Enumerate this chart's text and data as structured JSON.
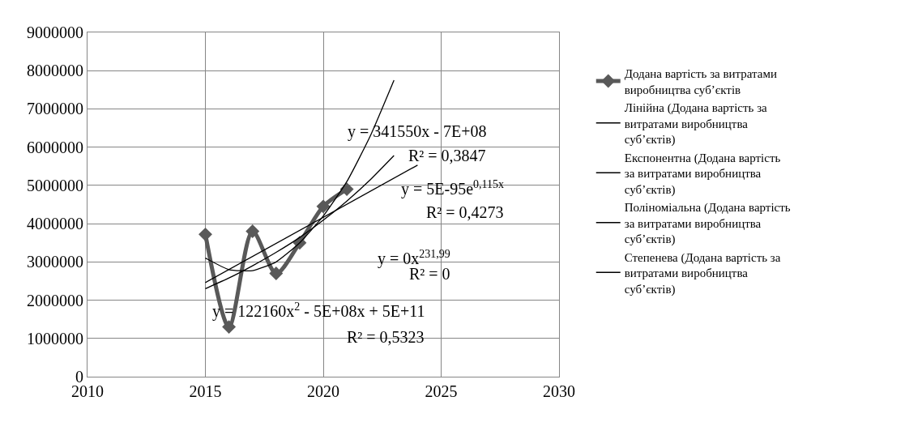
{
  "chart_data": {
    "type": "line",
    "x": [
      2015,
      2016,
      2017,
      2018,
      2019,
      2020,
      2021
    ],
    "series": [
      {
        "name": "Додана вартість за витратами виробництва суб’єктів",
        "color": "#595959",
        "values": [
          3720000,
          1300000,
          3800000,
          2700000,
          3500000,
          4450000,
          4900000
        ],
        "marker": "diamond"
      },
      {
        "name": "Лінійна (Додана вартість за витратами виробництва суб’єктів)",
        "color": "#000000",
        "x": [
          2015,
          2024
        ],
        "values": [
          2460000,
          5530000
        ],
        "marker": "none"
      },
      {
        "name": "Експонентна (Додана вартість за витратами виробництва суб’єктів)",
        "color": "#000000",
        "x": [
          2015,
          2016,
          2017,
          2018,
          2019,
          2020,
          2021,
          2022,
          2023
        ],
        "values": [
          2300000,
          2580000,
          2900000,
          3250000,
          3640000,
          4090000,
          4590000,
          5150000,
          5780000
        ],
        "marker": "none"
      },
      {
        "name": "Поліноміальна (Додана вартість за витратами виробництва суб’єктів)",
        "color": "#000000",
        "x": [
          2015,
          2016,
          2017,
          2018,
          2019,
          2020,
          2021,
          2022,
          2023
        ],
        "values": [
          3100000,
          2800000,
          2770000,
          3000000,
          3500000,
          4200000,
          5100000,
          6300000,
          7750000
        ],
        "marker": "none"
      },
      {
        "name": "Степенева (Додана вартість за витратами виробництва суб’єктів)",
        "color": "#000000",
        "values": [
          null,
          null,
          null,
          null,
          null,
          null,
          null
        ],
        "marker": "none"
      }
    ],
    "xlim": [
      2010,
      2030
    ],
    "xticks": [
      2010,
      2015,
      2020,
      2025,
      2030
    ],
    "ylim": [
      0,
      9000000
    ],
    "yticks": [
      0,
      1000000,
      2000000,
      3000000,
      4000000,
      5000000,
      6000000,
      7000000,
      8000000,
      9000000
    ],
    "grid": true,
    "legend": "right",
    "line_style": "solid",
    "annotations": [
      "y = 341550x - 7E+08",
      "R² = 0,3847",
      "y = 5E-95e$^{0,115x}$",
      "R² = 0,4273",
      "y = 0x$^{231,99}$",
      "R² = 0",
      "y = 122160x$^{2}$ - 5E+08x + 5E+11",
      "R² = 0,5323"
    ]
  }
}
